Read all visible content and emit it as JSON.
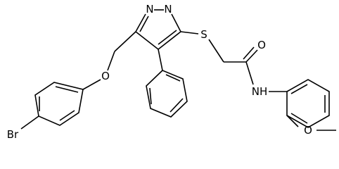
{
  "atom_labels": [
    "N",
    "N",
    "S",
    "O",
    "NH",
    "O",
    "Br",
    "O"
  ]
}
